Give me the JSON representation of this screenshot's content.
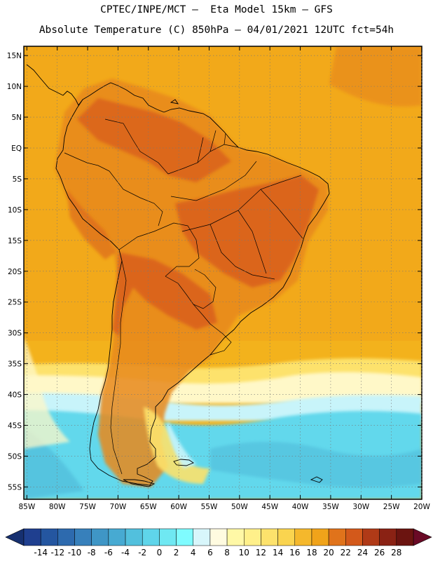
{
  "header": {
    "line1": "CPTEC/INPE/MCT –  Eta Model 15km – GFS",
    "line2": "Absolute Temperature (C) 850hPa – 04/01/2021 12UTC fct=54h"
  },
  "map": {
    "lat_labels": [
      "15N",
      "10N",
      "5N",
      "EQ",
      "5S",
      "10S",
      "15S",
      "20S",
      "25S",
      "30S",
      "35S",
      "40S",
      "45S",
      "50S",
      "55S"
    ],
    "lat_values": [
      15,
      10,
      5,
      0,
      -5,
      -10,
      -15,
      -20,
      -25,
      -30,
      -35,
      -40,
      -45,
      -50,
      -55
    ],
    "lon_labels": [
      "85W",
      "80W",
      "75W",
      "70W",
      "65W",
      "60W",
      "55W",
      "50W",
      "45W",
      "40W",
      "35W",
      "30W",
      "25W",
      "20W"
    ],
    "lon_values": [
      -85,
      -80,
      -75,
      -70,
      -65,
      -60,
      -55,
      -50,
      -45,
      -40,
      -35,
      -30,
      -25,
      -20
    ],
    "lon_range": [
      -85.5,
      -20
    ],
    "lat_range": [
      -57,
      16.5
    ]
  },
  "colorbar": {
    "labels": [
      "-14",
      "-12",
      "-10",
      "-8",
      "-6",
      "-4",
      "-2",
      "0",
      "2",
      "4",
      "6",
      "8",
      "10",
      "12",
      "14",
      "16",
      "18",
      "20",
      "22",
      "24",
      "26",
      "28"
    ],
    "colors": [
      "#1f3f8f",
      "#2456a0",
      "#2d6aae",
      "#3780bb",
      "#3f96c6",
      "#47aad2",
      "#52c0dd",
      "#5fd5ea",
      "#6fe8f2",
      "#7ffcff",
      "#d8f6fb",
      "#fffbe0",
      "#fff8a6",
      "#fff08a",
      "#fde26c",
      "#fad44f",
      "#f5b82c",
      "#f0a31a",
      "#e0731b",
      "#d3591b",
      "#b03a17",
      "#8a2214",
      "#6b1410"
    ],
    "under_color": "#163070",
    "over_color": "#6a0a26"
  },
  "field_colors": {
    "ocean_north": "#f3b21c",
    "ocean_mid": "#f0a31a",
    "warm": "#e8891a",
    "hot": "#d95f1b",
    "coast_yellow": "#fde26c",
    "pale": "#fff8c8",
    "light_cyan": "#c8f4fa",
    "cyan": "#6fe8f2",
    "cyan_mid": "#52c0dd",
    "cyan_south": "#62d8ec"
  }
}
